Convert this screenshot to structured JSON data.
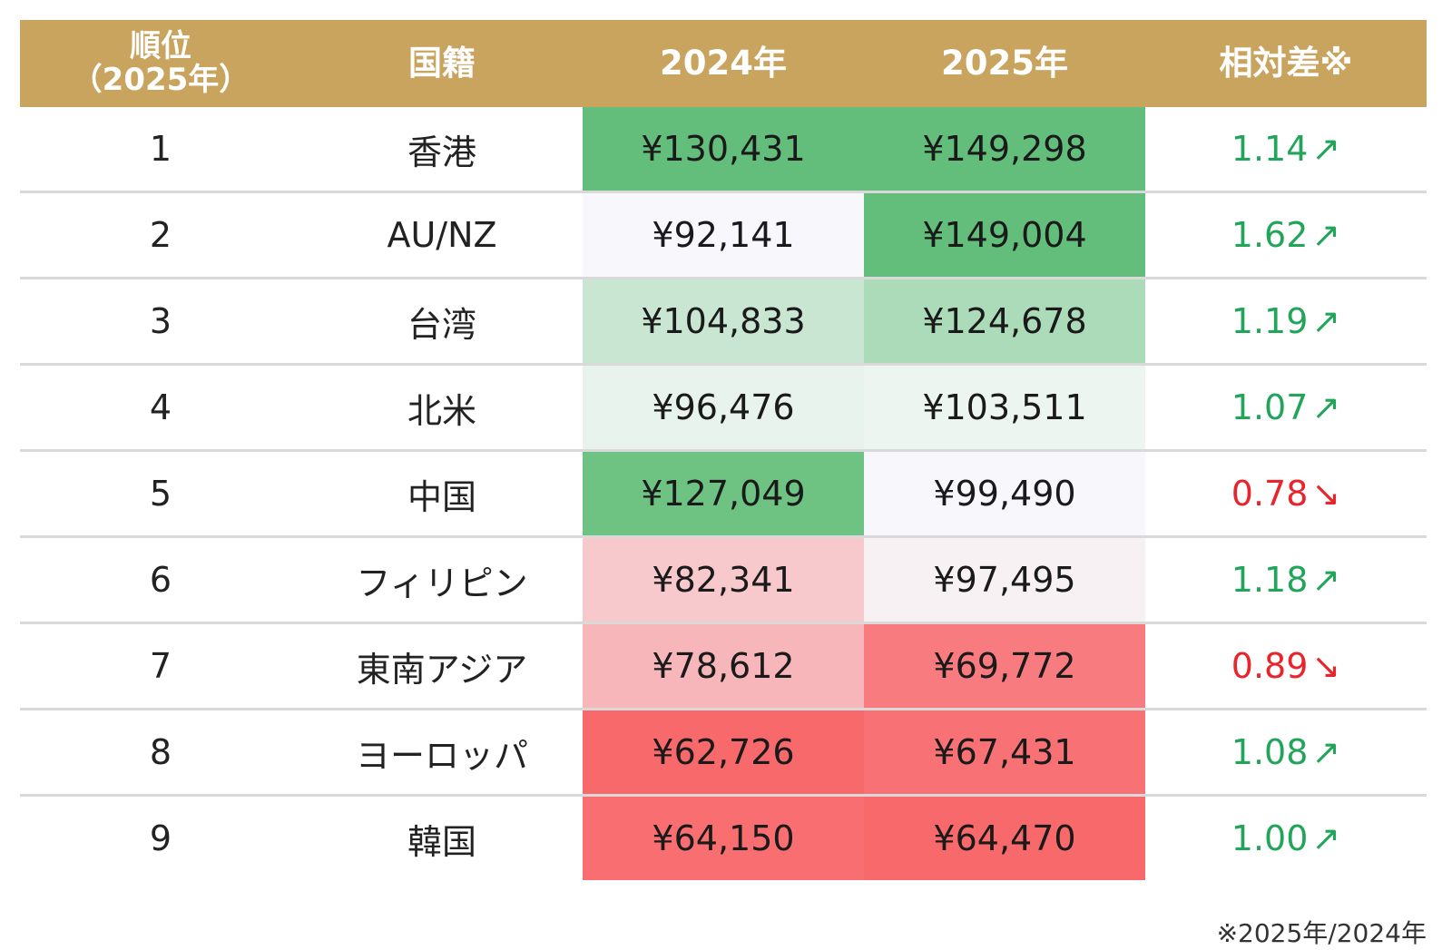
{
  "headers": {
    "rank_line1": "順位",
    "rank_line2": "（2025年）",
    "country": "国籍",
    "y2024": "2024年",
    "y2025": "2025年",
    "ratio": "相対差※"
  },
  "rows": [
    {
      "rank": "1",
      "country": "香港",
      "v2024": "¥130,431",
      "v2025": "¥149,298",
      "ratio": "1.14",
      "arrow": "↗",
      "dir": "up",
      "c2024": "#63be7b",
      "c2025": "#63be7b"
    },
    {
      "rank": "2",
      "country": "AU/NZ",
      "v2024": "¥92,141",
      "v2025": "¥149,004",
      "ratio": "1.62",
      "arrow": "↗",
      "dir": "up",
      "c2024": "#f8f7fc",
      "c2025": "#63be7b"
    },
    {
      "rank": "3",
      "country": "台湾",
      "v2024": "¥104,833",
      "v2025": "¥124,678",
      "ratio": "1.19",
      "arrow": "↗",
      "dir": "up",
      "c2024": "#c8e6d1",
      "c2025": "#abdbb9"
    },
    {
      "rank": "4",
      "country": "北米",
      "v2024": "¥96,476",
      "v2025": "¥103,511",
      "ratio": "1.07",
      "arrow": "↗",
      "dir": "up",
      "c2024": "#e8f3ed",
      "c2025": "#ecf5f0"
    },
    {
      "rank": "5",
      "country": "中国",
      "v2024": "¥127,049",
      "v2025": "¥99,490",
      "ratio": "0.78",
      "arrow": "↘",
      "dir": "down",
      "c2024": "#6ec282",
      "c2025": "#f8f7fc"
    },
    {
      "rank": "6",
      "country": "フィリピン",
      "v2024": "¥82,341",
      "v2025": "¥97,495",
      "ratio": "1.18",
      "arrow": "↗",
      "dir": "up",
      "c2024": "#f7c8cc",
      "c2025": "#f8f1f4"
    },
    {
      "rank": "7",
      "country": "東南アジア",
      "v2024": "¥78,612",
      "v2025": "¥69,772",
      "ratio": "0.89",
      "arrow": "↘",
      "dir": "down",
      "c2024": "#f7b6ba",
      "c2025": "#f87b80"
    },
    {
      "rank": "8",
      "country": "ヨーロッパ",
      "v2024": "¥62,726",
      "v2025": "¥67,431",
      "ratio": "1.08",
      "arrow": "↗",
      "dir": "up",
      "c2024": "#f8696b",
      "c2025": "#f87174"
    },
    {
      "rank": "9",
      "country": "韓国",
      "v2024": "¥64,150",
      "v2025": "¥64,470",
      "ratio": "1.00",
      "arrow": "↗",
      "dir": "up",
      "c2024": "#f86e71",
      "c2025": "#f8696b"
    }
  ],
  "footnote": "※2025年/2024年",
  "colors": {
    "header_bg": "#c9a45f",
    "up_text": "#22a55a",
    "down_text": "#e8242c"
  }
}
